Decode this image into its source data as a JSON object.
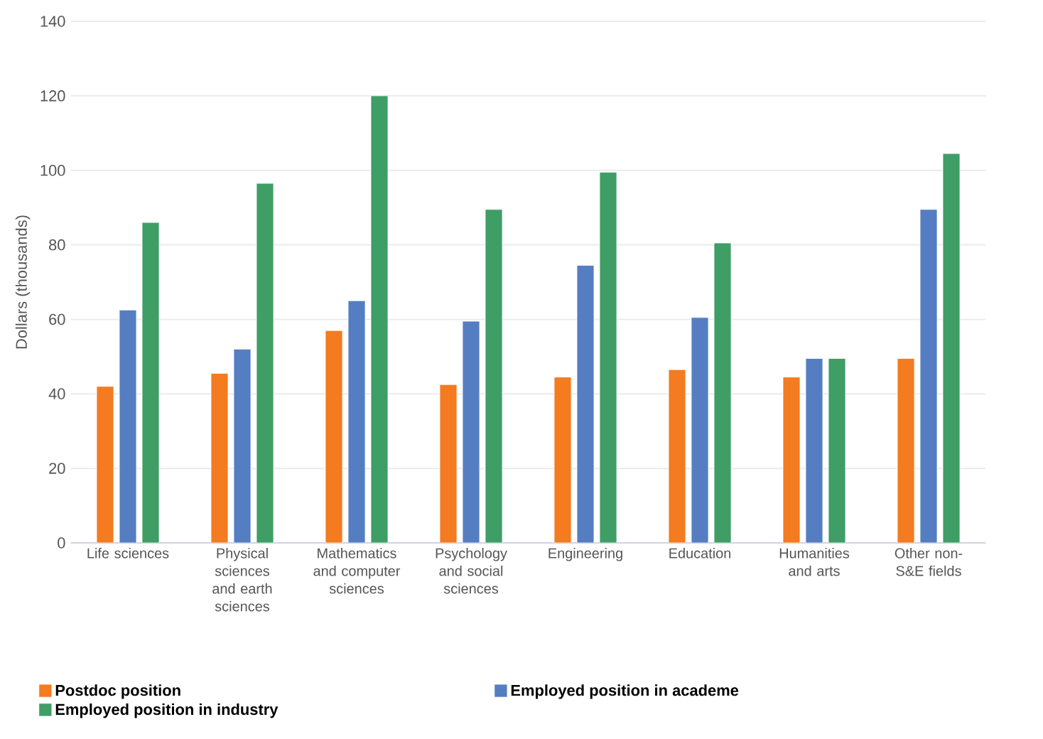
{
  "chart_data": {
    "type": "bar",
    "ylabel": "Dollars (thousands)",
    "categories": [
      "Life sciences",
      "Physical sciences and earth sciences",
      "Mathematics and computer sciences",
      "Psychology and social sciences",
      "Engineering",
      "Education",
      "Humanities and arts",
      "Other non-S&E fields"
    ],
    "series": [
      {
        "name": "Postdoc position",
        "color": "#f47b20",
        "values": [
          42,
          45.5,
          57,
          42.5,
          44.5,
          46.5,
          44.5,
          49.5
        ]
      },
      {
        "name": "Employed position in academe",
        "color": "#557ec2",
        "values": [
          62.5,
          52,
          65,
          59.5,
          74.5,
          60.5,
          49.5,
          89.5
        ]
      },
      {
        "name": "Employed position in industry",
        "color": "#3f9e66",
        "values": [
          86,
          96.5,
          120,
          89.5,
          99.5,
          80.5,
          49.5,
          104.5
        ]
      }
    ],
    "ylim": [
      0,
      140
    ],
    "yticks": [
      0,
      20,
      40,
      60,
      80,
      100,
      120,
      140
    ],
    "grid": "y",
    "legend": "bottom"
  }
}
